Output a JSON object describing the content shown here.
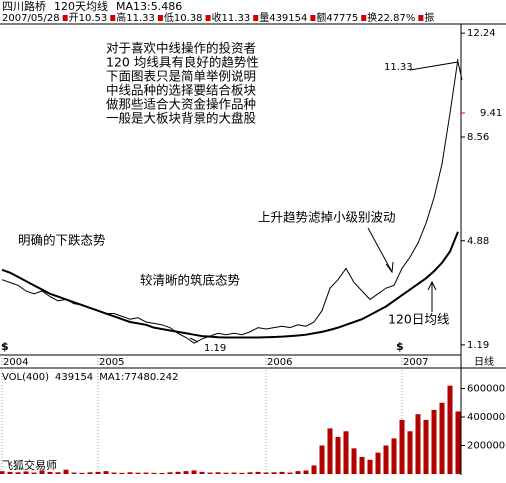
{
  "header": {
    "name": "四川路桥",
    "indicator": "120天均线",
    "ma": "MA13:5.486",
    "date": "2007/05/28",
    "quote": [
      "开10.53",
      "高11.33",
      "低10.38",
      "收11.33",
      "量439154",
      "额47775",
      "换22.87%",
      "振"
    ]
  },
  "chart_data": [
    {
      "type": "line",
      "categories": [
        "2004",
        null,
        null,
        null,
        null,
        null,
        null,
        null,
        null,
        null,
        null,
        null,
        "2005",
        null,
        null,
        null,
        null,
        null,
        null,
        null,
        null,
        null,
        null,
        null,
        null,
        null,
        null,
        null,
        null,
        null,
        null,
        null,
        null,
        "2006",
        null,
        null,
        null,
        null,
        null,
        null,
        null,
        null,
        null,
        null,
        null,
        null,
        null,
        null,
        null,
        null,
        "2007",
        null,
        null,
        null,
        null,
        null,
        null,
        null
      ],
      "x_label": "日线",
      "series": [
        {
          "color": "#000000",
          "values": [
            3.5,
            3.4,
            3.3,
            3.1,
            3.0,
            3.1,
            2.9,
            2.75,
            2.8,
            2.65,
            2.6,
            2.5,
            2.4,
            2.3,
            2.3,
            2.2,
            2.1,
            2.15,
            2.0,
            1.95,
            1.9,
            1.8,
            1.6,
            1.45,
            1.25,
            1.4,
            1.5,
            1.6,
            1.55,
            1.6,
            1.55,
            1.65,
            1.8,
            1.75,
            1.8,
            1.85,
            1.8,
            1.9,
            1.85,
            2.0,
            2.4,
            3.2,
            3.5,
            3.9,
            3.4,
            3.1,
            2.8,
            3.0,
            3.2,
            3.3,
            3.9,
            4.3,
            4.8,
            5.5,
            6.4,
            7.6,
            9.4,
            11.33
          ]
        },
        {
          "color": "#000000",
          "values": [
            3.85,
            3.75,
            3.6,
            3.45,
            3.3,
            3.15,
            3.0,
            2.9,
            2.8,
            2.7,
            2.6,
            2.5,
            2.4,
            2.3,
            2.2,
            2.1,
            2.0,
            1.95,
            1.9,
            1.8,
            1.75,
            1.7,
            1.65,
            1.6,
            1.55,
            1.5,
            1.48,
            1.46,
            1.45,
            1.45,
            1.45,
            1.45,
            1.45,
            1.46,
            1.47,
            1.48,
            1.5,
            1.52,
            1.55,
            1.6,
            1.65,
            1.72,
            1.8,
            1.9,
            2.0,
            2.1,
            2.25,
            2.4,
            2.55,
            2.75,
            2.95,
            3.15,
            3.35,
            3.55,
            3.8,
            4.1,
            4.5,
            5.2
          ]
        }
      ],
      "ylim": [
        0.83,
        12.53
      ],
      "yticks": [
        12.24,
        8.56,
        4.88,
        1.19
      ],
      "price_marker": {
        "value": 9.41,
        "color": "#ff0000"
      },
      "extremes": [
        11.33,
        1.19
      ],
      "annotations": [
        "对于喜欢中线操作的投资者",
        "120 均线具有良好的趋势性",
        "下面图表只是简单举例说明",
        "中线品种的选择要结合板块",
        "做那些适合大资金操作品种",
        "一般是大板块背景的大盘股",
        "明确的下跌态势",
        "较清晰的筑底态势",
        "上升趋势滤掉小级别波动",
        "120日均线"
      ],
      "dividend_marks": [
        "$",
        "$"
      ]
    },
    {
      "type": "bar",
      "title": "VOL(400)",
      "last": "439154",
      "ma": "MA1:77480.242",
      "color": "#b00000",
      "values": [
        20000,
        15000,
        12000,
        18000,
        10000,
        25000,
        15000,
        12000,
        30000,
        10000,
        8000,
        12000,
        15000,
        20000,
        10000,
        8000,
        12000,
        9000,
        10000,
        8000,
        7000,
        12000,
        15000,
        20000,
        25000,
        15000,
        10000,
        12000,
        9000,
        10000,
        8000,
        12000,
        15000,
        10000,
        12000,
        15000,
        10000,
        20000,
        25000,
        60000,
        200000,
        320000,
        260000,
        300000,
        180000,
        120000,
        100000,
        150000,
        200000,
        250000,
        380000,
        300000,
        420000,
        380000,
        450000,
        500000,
        620000,
        439154
      ],
      "ylim": [
        0,
        660000
      ],
      "yticks": [
        200000,
        400000,
        600000
      ]
    }
  ],
  "footer": "飞狐交易师"
}
